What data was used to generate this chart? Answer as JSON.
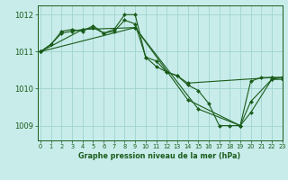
{
  "title": "Graphe pression niveau de la mer (hPa)",
  "background_color": "#c8ecea",
  "line_color": "#1a5c1a",
  "grid_color": "#a0d4d0",
  "ylim": [
    1008.6,
    1012.25
  ],
  "xlim": [
    -0.3,
    23
  ],
  "yticks": [
    1009,
    1010,
    1011,
    1012
  ],
  "xticks": [
    0,
    1,
    2,
    3,
    4,
    5,
    6,
    7,
    8,
    9,
    10,
    11,
    12,
    13,
    14,
    15,
    16,
    17,
    18,
    19,
    20,
    21,
    22,
    23
  ],
  "series": [
    {
      "x": [
        0,
        1,
        2,
        3,
        4,
        5,
        6,
        7,
        8,
        9,
        10,
        11,
        12,
        13,
        14,
        15,
        16,
        17,
        18,
        19,
        20,
        21,
        22,
        23
      ],
      "y": [
        1011.0,
        1011.2,
        1011.5,
        1011.55,
        1011.6,
        1011.65,
        1011.5,
        1011.55,
        1011.85,
        1011.75,
        1010.85,
        1010.75,
        1010.45,
        1010.35,
        1010.1,
        1009.95,
        1009.6,
        1009.0,
        1009.0,
        1009.0,
        1010.2,
        1010.3,
        1010.3,
        1010.3
      ]
    },
    {
      "x": [
        0,
        1,
        2,
        3,
        4,
        5,
        6,
        7,
        8,
        9,
        10,
        11,
        12,
        13,
        14,
        22,
        23
      ],
      "y": [
        1011.0,
        1011.2,
        1011.55,
        1011.6,
        1011.55,
        1011.7,
        1011.5,
        1011.6,
        1012.0,
        1012.0,
        1010.85,
        1010.6,
        1010.45,
        1010.35,
        1010.15,
        1010.3,
        1010.3
      ]
    },
    {
      "x": [
        0,
        9,
        14,
        19,
        20,
        22,
        23
      ],
      "y": [
        1011.0,
        1011.65,
        1009.7,
        1009.0,
        1009.35,
        1010.25,
        1010.25
      ]
    },
    {
      "x": [
        0,
        4,
        9,
        15,
        19,
        20,
        22,
        23
      ],
      "y": [
        1011.0,
        1011.6,
        1011.65,
        1009.45,
        1009.0,
        1009.65,
        1010.25,
        1010.3
      ]
    }
  ]
}
